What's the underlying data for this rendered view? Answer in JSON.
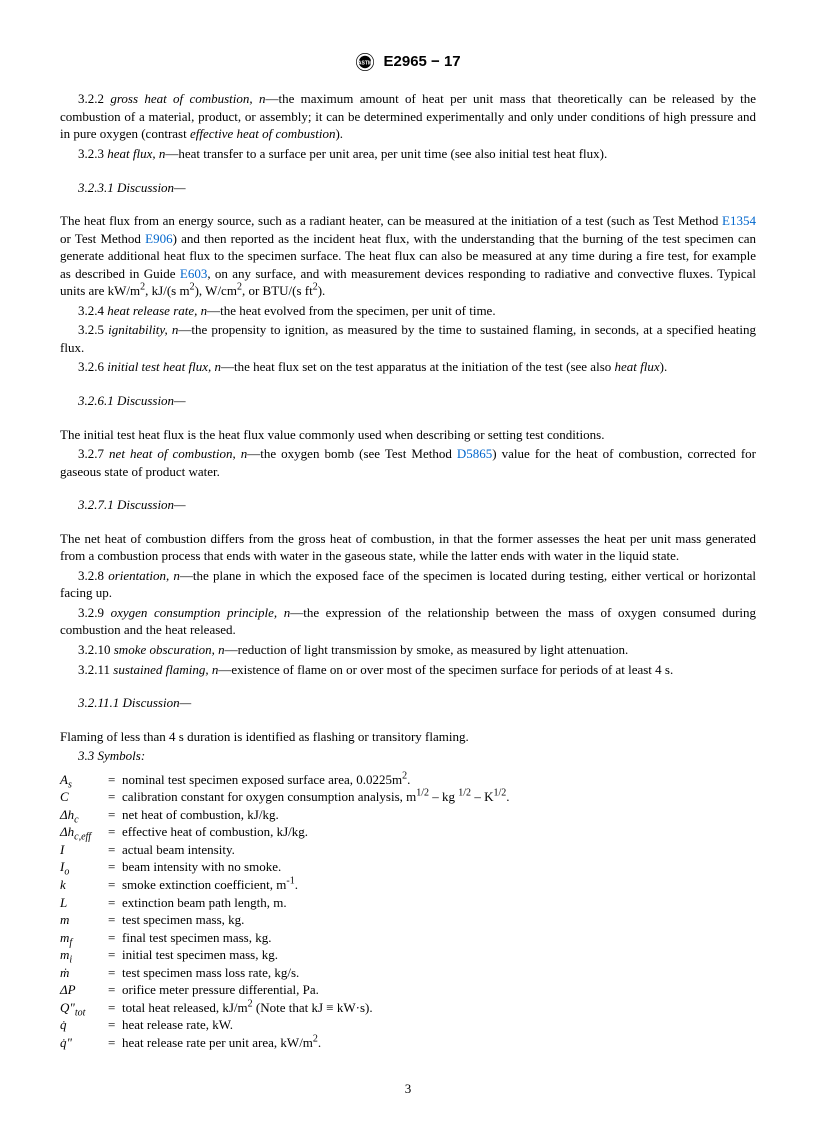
{
  "header": {
    "doc_id": "E2965 − 17"
  },
  "definitions": [
    {
      "num": "3.2.2",
      "term": "gross heat of combustion, n",
      "text": "—the maximum amount of heat per unit mass that theoretically can be released by the combustion of a material, product, or assembly; it can be determined experimentally and only under conditions of high pressure and in pure oxygen (contrast ",
      "ital_tail": "effective heat of combustion",
      "tail": ")."
    },
    {
      "num": "3.2.3",
      "term": "heat flux, n",
      "text": "—heat transfer to a surface per unit area, per unit time (see also initial test heat flux)."
    }
  ],
  "disc_3231": "3.2.3.1 Discussion—",
  "disc_3231_body_pre": "The heat flux from an energy source, such as a radiant heater, can be measured at the initiation of a test (such as Test Method ",
  "link_E1354": "E1354",
  "disc_3231_body_mid1": " or Test Method ",
  "link_E906": "E906",
  "disc_3231_body_mid2": ") and then reported as the incident heat flux, with the understanding that the burning of the test specimen can generate additional heat flux to the specimen surface. The heat flux can also be measured at any time during a fire test, for example as described in Guide ",
  "link_E603": "E603",
  "disc_3231_body_tail": ", on any surface, and with measurement devices responding to radiative and convective fluxes. Typical units are kW/m",
  "units_1": ", kJ/(s m",
  "units_2": "), W/cm",
  "units_3": ", or BTU/(s ft",
  "units_4": ").",
  "def_324": {
    "num": "3.2.4",
    "term": "heat release rate, n",
    "text": "—the heat evolved from the specimen, per unit of time."
  },
  "def_325": {
    "num": "3.2.5",
    "term": "ignitability, n",
    "text": "—the propensity to ignition, as measured by the time to sustained flaming, in seconds, at a specified heating flux."
  },
  "def_326": {
    "num": "3.2.6",
    "term": "initial test heat flux, n",
    "text": "—the heat flux set on the test apparatus at the initiation of the test (see also ",
    "ital_tail": "heat flux",
    "tail": ")."
  },
  "disc_3261": "3.2.6.1 Discussion—",
  "disc_3261_body": "The initial test heat flux is the heat flux value commonly used when describing or setting test conditions.",
  "def_327_pre": {
    "num": "3.2.7",
    "term": "net heat of combustion, n",
    "text_pre": "—the oxygen bomb (see Test Method "
  },
  "link_D5865": "D5865",
  "def_327_post": ") value for the heat of combustion, corrected for gaseous state of product water.",
  "disc_3271": "3.2.7.1 Discussion—",
  "disc_3271_body": "The net heat of combustion differs from the gross heat of combustion, in that the former assesses the heat per unit mass generated from a combustion process that ends with water in the gaseous state, while the latter ends with water in the liquid state.",
  "def_328": {
    "num": "3.2.8",
    "term": "orientation, n",
    "text": "—the plane in which the exposed face of the specimen is located during testing, either vertical or horizontal facing up."
  },
  "def_329": {
    "num": "3.2.9",
    "term": "oxygen consumption principle, n",
    "text": "—the expression of the relationship between the mass of oxygen consumed during combustion and the heat released."
  },
  "def_3210": {
    "num": "3.2.10",
    "term": "smoke obscuration, n",
    "text": "—reduction of light transmission by smoke, as measured by light attenuation."
  },
  "def_3211": {
    "num": "3.2.11",
    "term": "sustained flaming, n",
    "text": "—existence of flame on or over most of the specimen surface for periods of at least 4 s."
  },
  "disc_32111": "3.2.11.1 Discussion—",
  "disc_32111_body": "Flaming of less than 4 s duration is identified as flashing or transitory flaming.",
  "symbols_heading": "3.3 Symbols:",
  "symbols": [
    {
      "sym_html": "A<span class='sub'>s</span>",
      "def_html": "nominal test specimen exposed surface area, 0.0225m<span class='sup'>2</span>."
    },
    {
      "sym_html": "C",
      "def_html": "calibration constant for oxygen consumption analysis, m<span class='sup'>1/2</span> – kg <span class='sup'>1/2</span> – K<span class='sup'>1/2</span>."
    },
    {
      "sym_html": "Δh<span class='sub'>c</span>",
      "def_html": "net heat of combustion, kJ/kg."
    },
    {
      "sym_html": "Δh<span class='sub'>c,eff</span>",
      "def_html": "effective heat of combustion, kJ/kg."
    },
    {
      "sym_html": "I",
      "def_html": "actual beam intensity."
    },
    {
      "sym_html": "I<span class='sub'>o</span>",
      "def_html": "beam intensity with no smoke."
    },
    {
      "sym_html": "k",
      "def_html": "smoke extinction coefficient, m<span class='sup'>-1</span>."
    },
    {
      "sym_html": "L",
      "def_html": "extinction beam path length, m."
    },
    {
      "sym_html": "m",
      "def_html": "test specimen mass, kg."
    },
    {
      "sym_html": "m<span class='sub'>f</span>",
      "def_html": "final test specimen mass, kg."
    },
    {
      "sym_html": "m<span class='sub'>i</span>",
      "def_html": "initial test specimen mass, kg."
    },
    {
      "sym_html": "ṁ",
      "def_html": "test specimen mass loss rate, kg/s."
    },
    {
      "sym_html": "ΔP",
      "def_html": "orifice meter pressure differential, Pa."
    },
    {
      "sym_html": "Q\"<span class='sub'>tot</span>",
      "def_html": "total heat released, kJ/m<span class='sup'>2</span> (Note that kJ ≡ kW·s)."
    },
    {
      "sym_html": "q̇",
      "def_html": "heat release rate, kW."
    },
    {
      "sym_html": "q̇\"",
      "def_html": "heat release rate per unit area, kW/m<span class='sup'>2</span>."
    }
  ],
  "page_number": "3",
  "colors": {
    "link": "#0066cc",
    "text": "#000000",
    "bg": "#ffffff"
  }
}
